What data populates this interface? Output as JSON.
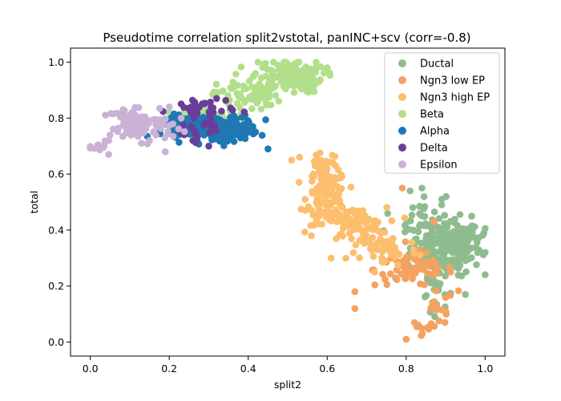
{
  "chart_data": {
    "type": "scatter",
    "title": "Pseudotime correlation split2vstotal, panINC+scv (corr=-0.8)",
    "xlabel": "split2",
    "ylabel": "total",
    "xlim": [
      -0.05,
      1.05
    ],
    "ylim": [
      -0.05,
      1.05
    ],
    "xticks": [
      "0.0",
      "0.2",
      "0.4",
      "0.6",
      "0.8",
      "1.0"
    ],
    "yticks": [
      "0.0",
      "0.2",
      "0.4",
      "0.6",
      "0.8",
      "1.0"
    ],
    "grid": false,
    "legend_position": "top-right",
    "series": [
      {
        "name": "Ductal",
        "color": "#8fbc8f",
        "clusters": [
          {
            "cx": 0.9,
            "cy": 0.34,
            "sx": 0.045,
            "sy": 0.05,
            "n": 220
          },
          {
            "cx": 0.84,
            "cy": 0.45,
            "sx": 0.03,
            "sy": 0.04,
            "n": 25
          },
          {
            "cx": 0.93,
            "cy": 0.38,
            "sx": 0.04,
            "sy": 0.03,
            "n": 40
          },
          {
            "cx": 0.88,
            "cy": 0.17,
            "sx": 0.02,
            "sy": 0.03,
            "n": 18
          }
        ],
        "points": [
          [
            0.81,
            0.54
          ],
          [
            0.84,
            0.55
          ],
          [
            0.89,
            0.51
          ],
          [
            0.8,
            0.25
          ],
          [
            0.95,
            0.17
          ]
        ]
      },
      {
        "name": "Ngn3 low EP",
        "color": "#f4a261",
        "clusters": [
          {
            "cx": 0.82,
            "cy": 0.26,
            "sx": 0.05,
            "sy": 0.03,
            "n": 70
          },
          {
            "cx": 0.88,
            "cy": 0.12,
            "sx": 0.02,
            "sy": 0.03,
            "n": 14
          },
          {
            "cx": 0.84,
            "cy": 0.04,
            "sx": 0.02,
            "sy": 0.02,
            "n": 10
          }
        ],
        "points": [
          [
            0.79,
            0.55
          ],
          [
            0.67,
            0.18
          ],
          [
            0.67,
            0.12
          ],
          [
            0.87,
            0.43
          ],
          [
            0.8,
            0.01
          ]
        ]
      },
      {
        "name": "Ngn3 high EP",
        "color": "#fdbe6e",
        "clusters": [
          {
            "cx": 0.6,
            "cy": 0.52,
            "sx": 0.025,
            "sy": 0.05,
            "n": 120
          },
          {
            "cx": 0.67,
            "cy": 0.42,
            "sx": 0.04,
            "sy": 0.03,
            "n": 80
          },
          {
            "cx": 0.75,
            "cy": 0.33,
            "sx": 0.04,
            "sy": 0.03,
            "n": 50
          },
          {
            "cx": 0.59,
            "cy": 0.64,
            "sx": 0.02,
            "sy": 0.03,
            "n": 25
          }
        ],
        "points": [
          [
            0.53,
            0.66
          ],
          [
            0.61,
            0.3
          ],
          [
            0.56,
            0.38
          ],
          [
            0.51,
            0.65
          ],
          [
            0.72,
            0.25
          ]
        ]
      },
      {
        "name": "Beta",
        "color": "#b2df8a",
        "clusters": [
          {
            "cx": 0.5,
            "cy": 0.95,
            "sx": 0.045,
            "sy": 0.03,
            "n": 140
          },
          {
            "cx": 0.4,
            "cy": 0.88,
            "sx": 0.04,
            "sy": 0.03,
            "n": 60
          },
          {
            "cx": 0.32,
            "cy": 0.79,
            "sx": 0.04,
            "sy": 0.02,
            "n": 40
          }
        ],
        "points": [
          [
            0.2,
            0.82
          ],
          [
            0.27,
            0.84
          ],
          [
            0.55,
            0.9
          ],
          [
            0.36,
            0.83
          ]
        ]
      },
      {
        "name": "Alpha",
        "color": "#1f78b4",
        "clusters": [
          {
            "cx": 0.3,
            "cy": 0.77,
            "sx": 0.055,
            "sy": 0.02,
            "n": 170
          },
          {
            "cx": 0.37,
            "cy": 0.76,
            "sx": 0.025,
            "sy": 0.02,
            "n": 50
          }
        ],
        "points": [
          [
            0.45,
            0.69
          ],
          [
            0.21,
            0.8
          ],
          [
            0.4,
            0.79
          ]
        ]
      },
      {
        "name": "Delta",
        "color": "#6a3d9a",
        "clusters": [
          {
            "cx": 0.28,
            "cy": 0.83,
            "sx": 0.04,
            "sy": 0.025,
            "n": 35
          },
          {
            "cx": 0.27,
            "cy": 0.76,
            "sx": 0.03,
            "sy": 0.02,
            "n": 15
          }
        ],
        "points": [
          [
            0.3,
            0.7
          ],
          [
            0.32,
            0.87
          ],
          [
            0.26,
            0.72
          ]
        ]
      },
      {
        "name": "Epsilon",
        "color": "#cab2d6",
        "clusters": [
          {
            "cx": 0.13,
            "cy": 0.77,
            "sx": 0.04,
            "sy": 0.025,
            "n": 80
          },
          {
            "cx": 0.03,
            "cy": 0.7,
            "sx": 0.015,
            "sy": 0.012,
            "n": 15
          },
          {
            "cx": 0.09,
            "cy": 0.81,
            "sx": 0.02,
            "sy": 0.012,
            "n": 15
          }
        ],
        "points": [
          [
            0.19,
            0.68
          ],
          [
            0.2,
            0.84
          ],
          [
            0.15,
            0.72
          ],
          [
            0.23,
            0.8
          ]
        ]
      }
    ]
  }
}
